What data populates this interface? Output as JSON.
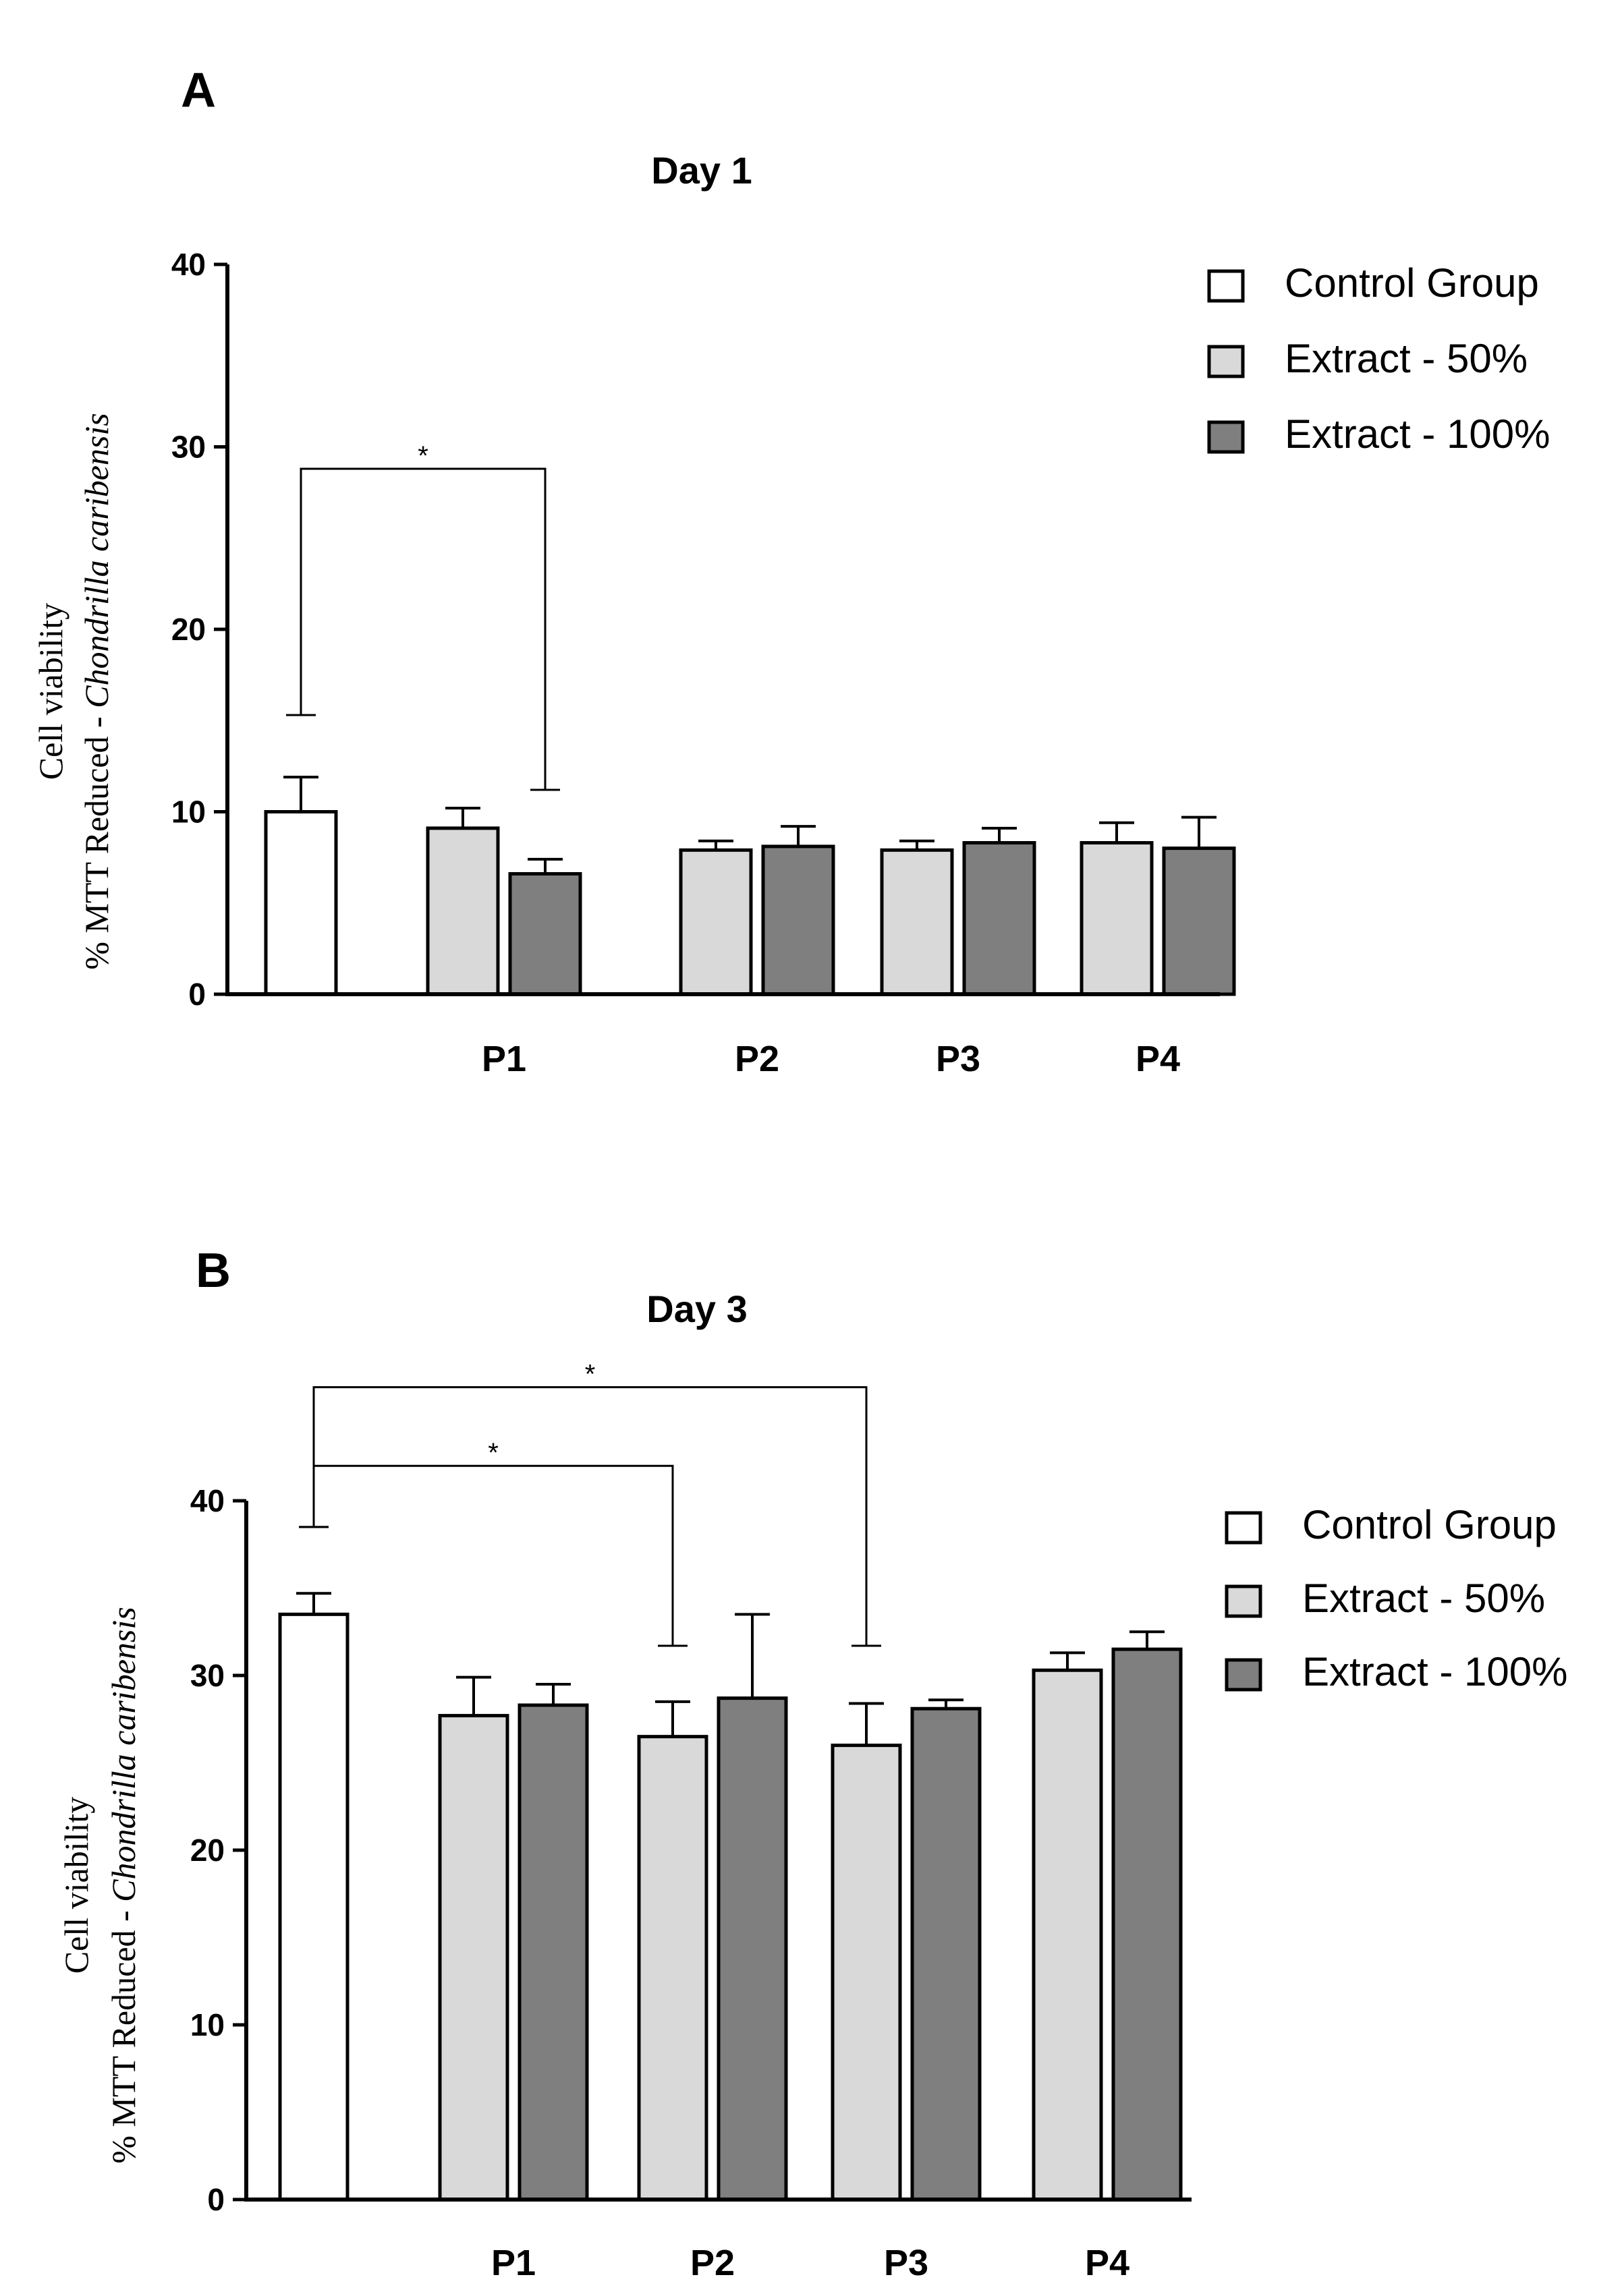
{
  "chart_data": [
    {
      "panel": "A",
      "type": "bar",
      "title": "Day 1",
      "ylabel_line1": "Cell viability",
      "ylabel_line2_prefix": "% MTT Reduced - ",
      "ylabel_line2_species": "Chondrilla caribensis",
      "ylim": [
        0,
        40
      ],
      "yticks": [
        "0",
        "10",
        "20",
        "30",
        "40"
      ],
      "categories": [
        "P1",
        "P2",
        "P3",
        "P4"
      ],
      "control": {
        "name": "Control Group",
        "value": 10.0,
        "error": 1.9,
        "color": "#ffffff"
      },
      "series": [
        {
          "name": "Extract - 50%",
          "color": "#d9d9d9",
          "values": [
            9.1,
            7.9,
            7.9,
            8.3
          ],
          "errors": [
            1.1,
            0.5,
            0.5,
            1.1
          ]
        },
        {
          "name": "Extract - 100%",
          "color": "#7f7f7f",
          "values": [
            6.6,
            8.1,
            8.3,
            8.0
          ],
          "errors": [
            0.8,
            1.1,
            0.8,
            1.7
          ]
        }
      ],
      "significance": [
        {
          "from": "control",
          "to": "P1 Extract - 100%",
          "label": "*",
          "bracket_value": 28.8,
          "left_drop_value": 15.3,
          "right_drop_value": 11.2
        }
      ]
    },
    {
      "panel": "B",
      "type": "bar",
      "title": "Day 3",
      "ylabel_line1": "Cell viability",
      "ylabel_line2_prefix": "% MTT Reduced - ",
      "ylabel_line2_species": "Chondrilla caribensis",
      "ylim": [
        0,
        40
      ],
      "yticks": [
        "0",
        "10",
        "20",
        "30",
        "40"
      ],
      "categories": [
        "P1",
        "P2",
        "P3",
        "P4"
      ],
      "control": {
        "name": "Control Group",
        "value": 33.5,
        "error": 1.2,
        "color": "#ffffff"
      },
      "series": [
        {
          "name": "Extract - 50%",
          "color": "#d9d9d9",
          "values": [
            27.7,
            26.5,
            26.0,
            30.3
          ],
          "errors": [
            2.2,
            2.0,
            2.4,
            1.0
          ]
        },
        {
          "name": "Extract - 100%",
          "color": "#7f7f7f",
          "values": [
            28.3,
            28.7,
            28.1,
            31.5
          ],
          "errors": [
            1.2,
            4.8,
            0.5,
            1.0
          ]
        }
      ],
      "significance": [
        {
          "from": "control",
          "to": "P2 Extract - 50%",
          "label": "*",
          "bracket_value": 42.0,
          "left_drop_value": 38.5,
          "right_drop_value": 31.7
        },
        {
          "from": "control",
          "to": "P3 Extract - 50%",
          "label": "*",
          "bracket_value": 46.5,
          "left_drop_value": 38.5,
          "right_drop_value": 31.7
        }
      ]
    }
  ]
}
